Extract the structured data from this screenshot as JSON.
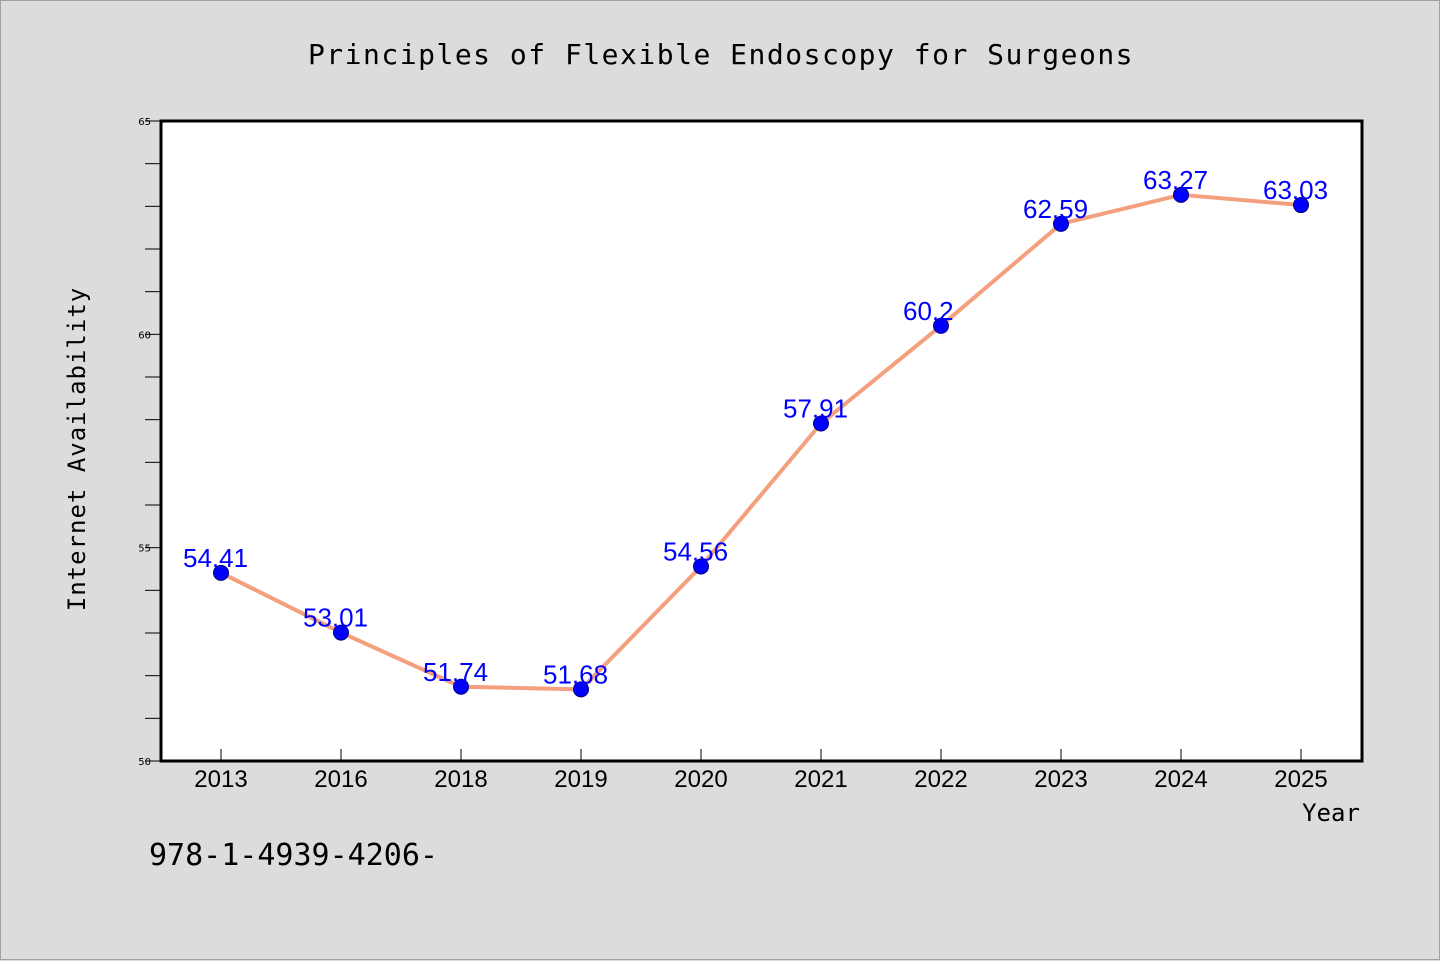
{
  "chart_data": {
    "type": "line",
    "title": "Principles of Flexible Endoscopy for Surgeons",
    "xlabel": "Year",
    "ylabel": "Internet Availability",
    "categories": [
      "2013",
      "2016",
      "2018",
      "2019",
      "2020",
      "2021",
      "2022",
      "2023",
      "2024",
      "2025"
    ],
    "values": [
      54.41,
      53.01,
      51.74,
      51.68,
      54.56,
      57.91,
      60.2,
      62.59,
      63.27,
      63.03
    ],
    "data_labels": [
      "54.41",
      "53.01",
      "51.74",
      "51.68",
      "54.56",
      "57.91",
      "60.2",
      "62.59",
      "63.27",
      "63.03"
    ],
    "ylim": [
      50,
      65
    ],
    "yticks": [
      50,
      55,
      60,
      65
    ],
    "ytick_labels": [
      "50",
      "55",
      "60",
      "65"
    ],
    "grid": false,
    "legend": "none",
    "colors": {
      "line": "#f4a07e",
      "marker": "#0000ff",
      "marker_edge": "#000080",
      "label": "#0000ff",
      "background": "#dcdcdc",
      "plot_background": "#ffffff"
    }
  },
  "caption": "978-1-4939-4206-"
}
